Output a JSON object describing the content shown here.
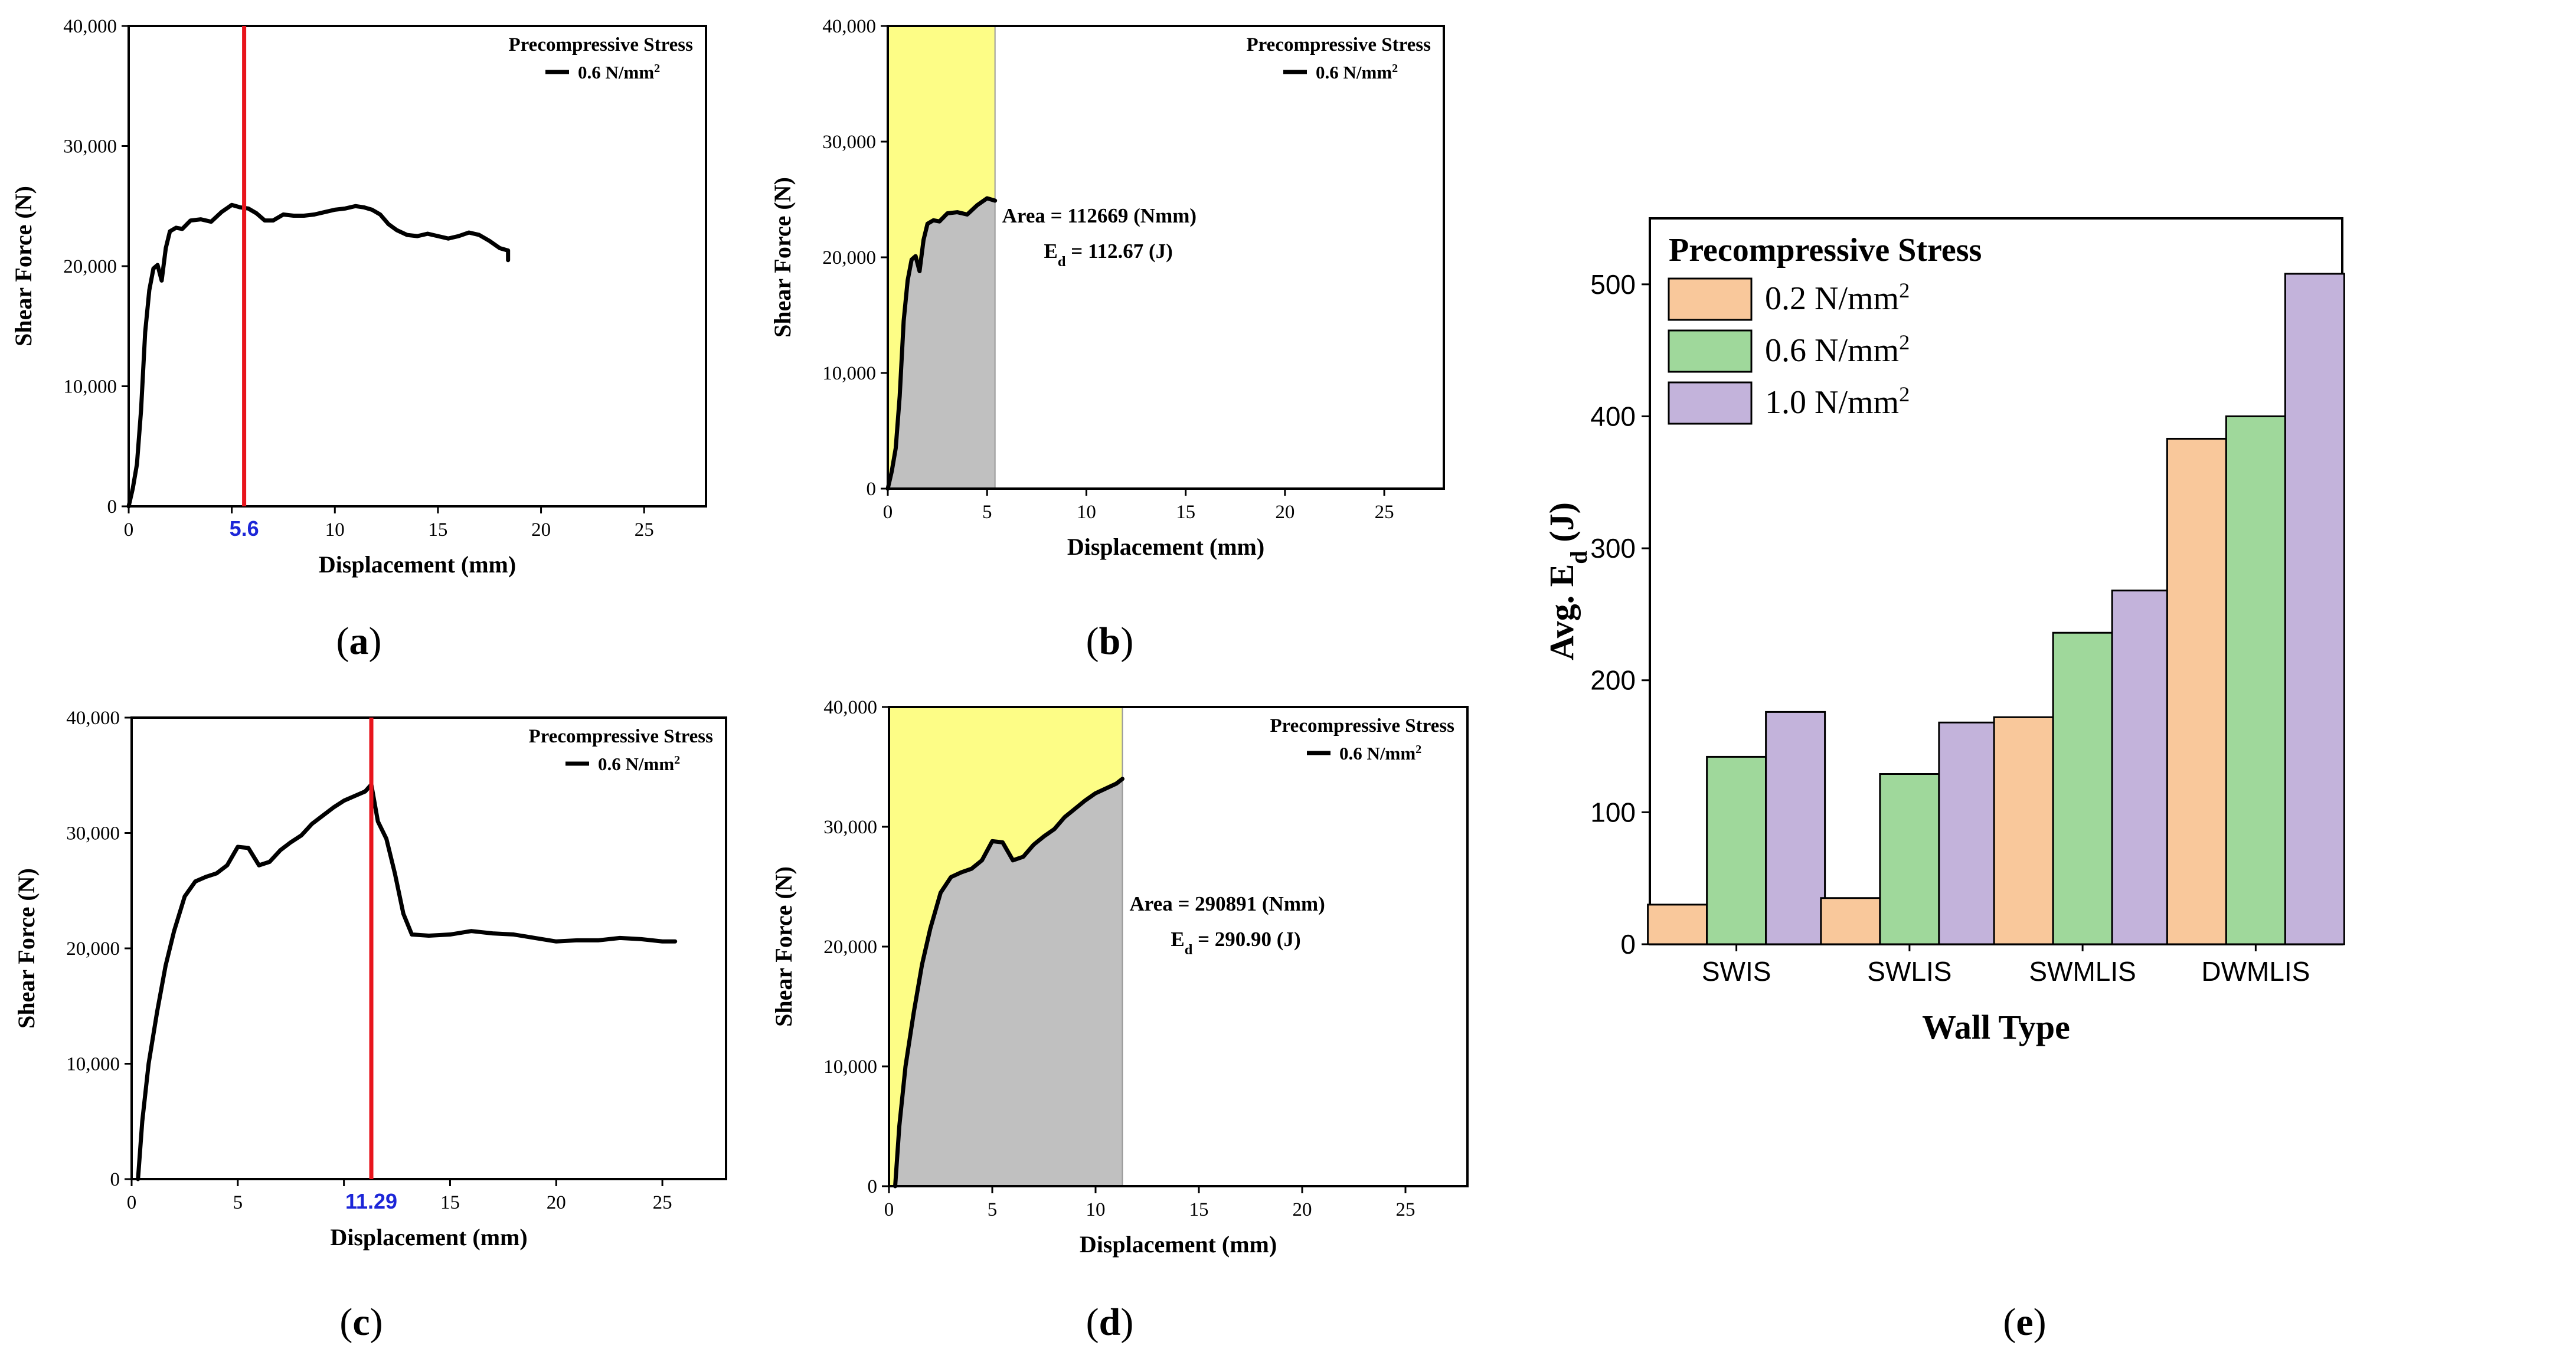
{
  "chart_data": [
    {
      "panel": "a",
      "type": "line",
      "caption": "a",
      "xlabel": "Displacement (mm)",
      "ylabel": "Shear Force (N)",
      "xlim": [
        0,
        28
      ],
      "ylim": [
        0,
        40000
      ],
      "xticks": [
        0,
        5,
        10,
        15,
        20,
        25
      ],
      "xtick_labels": [
        "0",
        "",
        "10",
        "15",
        "20",
        "25"
      ],
      "yticks": [
        0,
        10000,
        20000,
        30000,
        40000
      ],
      "ytick_labels": [
        "0",
        "10,000",
        "20,000",
        "30,000",
        "40,000"
      ],
      "legend": {
        "title": "Precompressive Stress",
        "label": "0.6 N/mm",
        "sup": "2"
      },
      "marker_line": {
        "x": 5.6,
        "label": "5.6",
        "color": "#e8141c"
      },
      "series": [
        {
          "name": "0.6 N/mm2",
          "x": [
            0,
            0.2,
            0.4,
            0.6,
            0.8,
            1.0,
            1.2,
            1.4,
            1.6,
            1.8,
            2.0,
            2.3,
            2.6,
            3.0,
            3.5,
            4.0,
            4.5,
            5.0,
            5.4,
            5.8,
            6.2,
            6.6,
            7.0,
            7.5,
            8.0,
            8.5,
            9.0,
            9.5,
            10.0,
            10.5,
            11.0,
            11.4,
            11.8,
            12.2,
            12.6,
            13.0,
            13.5,
            14.0,
            14.5,
            15.0,
            15.5,
            16.0,
            16.5,
            17.0,
            17.5,
            18.0,
            18.4,
            18.4
          ],
          "y": [
            0,
            1500,
            3500,
            8000,
            14500,
            18000,
            19800,
            20100,
            18800,
            21500,
            22900,
            23200,
            23100,
            23800,
            23900,
            23700,
            24500,
            25100,
            24900,
            24800,
            24400,
            23800,
            23800,
            24300,
            24200,
            24200,
            24300,
            24500,
            24700,
            24800,
            25000,
            24900,
            24700,
            24300,
            23500,
            23000,
            22600,
            22500,
            22700,
            22500,
            22300,
            22500,
            22800,
            22600,
            22100,
            21500,
            21300,
            20500
          ]
        }
      ]
    },
    {
      "panel": "b",
      "type": "area",
      "caption": "b",
      "xlabel": "Displacement (mm)",
      "ylabel": "Shear Force (N)",
      "xlim": [
        0,
        28
      ],
      "ylim": [
        0,
        40000
      ],
      "xticks": [
        0,
        5,
        10,
        15,
        20,
        25
      ],
      "xtick_labels": [
        "0",
        "5",
        "10",
        "15",
        "20",
        "25"
      ],
      "yticks": [
        0,
        10000,
        20000,
        30000,
        40000
      ],
      "ytick_labels": [
        "0",
        "10,000",
        "20,000",
        "30,000",
        "40,000"
      ],
      "legend": {
        "title": "Precompressive Stress",
        "label": "0.6 N/mm",
        "sup": "2"
      },
      "shade_limit_x": 5.4,
      "annotation": {
        "line1": "Area = 112669 (Nmm)",
        "line2_prefix": "E",
        "line2_sub": "d",
        "line2_rest": " = 112.67 (J)"
      },
      "series": [
        {
          "name": "0.6 N/mm2",
          "x": [
            0,
            0.2,
            0.4,
            0.6,
            0.8,
            1.0,
            1.2,
            1.4,
            1.6,
            1.8,
            2.0,
            2.3,
            2.6,
            3.0,
            3.5,
            4.0,
            4.5,
            5.0,
            5.4
          ],
          "y": [
            0,
            1500,
            3500,
            8000,
            14500,
            18000,
            19800,
            20100,
            18800,
            21500,
            22900,
            23200,
            23100,
            23800,
            23900,
            23700,
            24500,
            25100,
            24900
          ]
        }
      ]
    },
    {
      "panel": "c",
      "type": "line",
      "caption": "c",
      "xlabel": "Displacement (mm)",
      "ylabel": "Shear Force (N)",
      "xlim": [
        0,
        28
      ],
      "ylim": [
        0,
        40000
      ],
      "xticks": [
        0,
        5,
        10,
        15,
        20,
        25
      ],
      "xtick_labels": [
        "0",
        "5",
        "",
        "15",
        "20",
        "25"
      ],
      "yticks": [
        0,
        10000,
        20000,
        30000,
        40000
      ],
      "ytick_labels": [
        "0",
        "10,000",
        "20,000",
        "30,000",
        "40,000"
      ],
      "legend": {
        "title": "Precompressive Stress",
        "label": "0.6 N/mm",
        "sup": "2"
      },
      "marker_line": {
        "x": 11.29,
        "label": "11.29",
        "color": "#e8141c"
      },
      "series": [
        {
          "name": "0.6 N/mm2",
          "x": [
            0.3,
            0.5,
            0.8,
            1.2,
            1.6,
            2.0,
            2.5,
            3.0,
            3.5,
            4.0,
            4.5,
            5.0,
            5.5,
            6.0,
            6.5,
            7.0,
            7.5,
            8.0,
            8.5,
            9.0,
            9.5,
            10.0,
            10.5,
            11.0,
            11.29,
            11.6,
            12.0,
            12.4,
            12.8,
            13.2,
            14.0,
            15.0,
            16.0,
            17.0,
            18.0,
            19.0,
            20.0,
            21.0,
            22.0,
            23.0,
            24.0,
            25.0,
            25.6
          ],
          "y": [
            0,
            5000,
            10000,
            14500,
            18500,
            21500,
            24500,
            25800,
            26200,
            26500,
            27200,
            28800,
            28700,
            27200,
            27500,
            28500,
            29200,
            29800,
            30800,
            31500,
            32200,
            32800,
            33200,
            33600,
            34200,
            31000,
            29500,
            26500,
            23000,
            21200,
            21100,
            21200,
            21500,
            21300,
            21200,
            20900,
            20600,
            20700,
            20700,
            20900,
            20800,
            20600,
            20600
          ]
        }
      ]
    },
    {
      "panel": "d",
      "type": "area",
      "caption": "d",
      "xlabel": "Displacement (mm)",
      "ylabel": "Shear Force (N)",
      "xlim": [
        0,
        28
      ],
      "ylim": [
        0,
        40000
      ],
      "xticks": [
        0,
        5,
        10,
        15,
        20,
        25
      ],
      "xtick_labels": [
        "0",
        "5",
        "10",
        "15",
        "20",
        "25"
      ],
      "yticks": [
        0,
        10000,
        20000,
        30000,
        40000
      ],
      "ytick_labels": [
        "0",
        "10,000",
        "20,000",
        "30,000",
        "40,000"
      ],
      "legend": {
        "title": "Precompressive Stress",
        "label": "0.6 N/mm",
        "sup": "2"
      },
      "shade_limit_x": 11.3,
      "annotation": {
        "line1": "Area = 290891 (Nmm)",
        "line2_prefix": "E",
        "line2_sub": "d",
        "line2_rest": " = 290.90 (J)"
      },
      "series": [
        {
          "name": "0.6 N/mm2",
          "x": [
            0.3,
            0.5,
            0.8,
            1.2,
            1.6,
            2.0,
            2.5,
            3.0,
            3.5,
            4.0,
            4.5,
            5.0,
            5.5,
            6.0,
            6.5,
            7.0,
            7.5,
            8.0,
            8.5,
            9.0,
            9.5,
            10.0,
            10.5,
            11.0,
            11.3
          ],
          "y": [
            0,
            5000,
            10000,
            14500,
            18500,
            21500,
            24500,
            25800,
            26200,
            26500,
            27200,
            28800,
            28700,
            27200,
            27500,
            28500,
            29200,
            29800,
            30800,
            31500,
            32200,
            32800,
            33200,
            33600,
            34000
          ]
        }
      ]
    },
    {
      "panel": "e",
      "type": "bar",
      "caption": "e",
      "xlabel": "Wall Type",
      "ylabel_prefix": "Avg. E",
      "ylabel_sub": "d",
      "ylabel_rest": " (J)",
      "ylim": [
        0,
        550
      ],
      "yticks": [
        0,
        100,
        200,
        300,
        400,
        500
      ],
      "ytick_labels": [
        "0",
        "100",
        "200",
        "300",
        "400",
        "500"
      ],
      "categories": [
        "SWIS",
        "SWLIS",
        "SWMLIS",
        "DWMLIS"
      ],
      "legend": {
        "title": "Precompressive Stress"
      },
      "series": [
        {
          "name": "0.2 N/mm",
          "sup": "2",
          "color": "#f9c89b",
          "values": [
            30,
            35,
            172,
            383
          ]
        },
        {
          "name": "0.6 N/mm",
          "sup": "2",
          "color": "#9fd89b",
          "values": [
            142,
            129,
            236,
            400
          ]
        },
        {
          "name": "1.0 N/mm",
          "sup": "2",
          "color": "#c3b3db",
          "values": [
            176,
            168,
            268,
            508
          ]
        }
      ]
    }
  ]
}
